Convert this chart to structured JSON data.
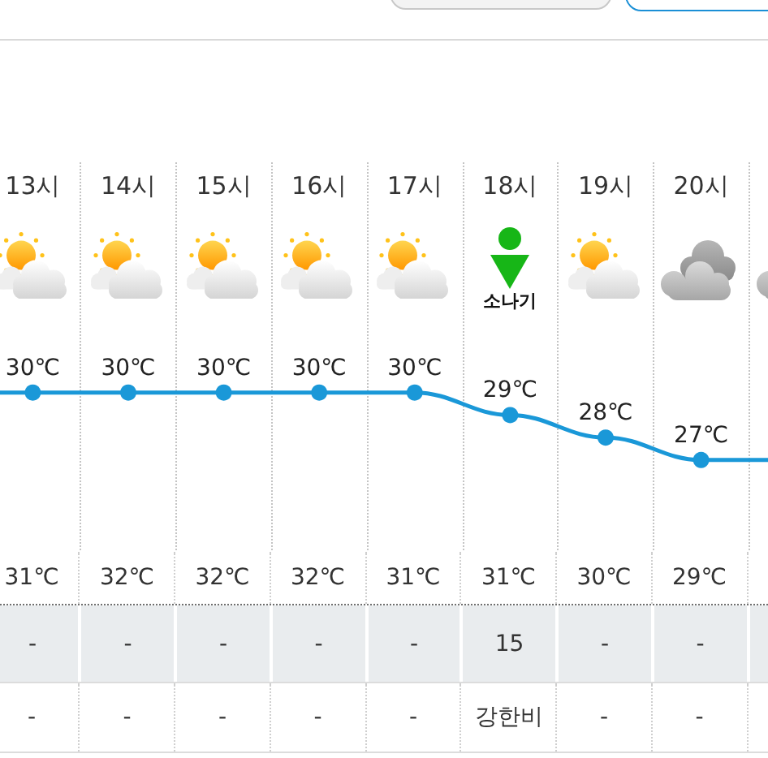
{
  "chart_data": [
    {
      "type": "line",
      "categories": [
        null,
        "13시",
        "14시",
        "15시",
        "16시",
        "17시",
        "18시",
        "19시",
        "20시",
        null
      ],
      "values": [
        30,
        30,
        30,
        30,
        30,
        30,
        29,
        28,
        27,
        27
      ],
      "value_labels": [
        null,
        "30℃",
        "30℃",
        "30℃",
        "30℃",
        "30℃",
        "29℃",
        "28℃",
        "27℃",
        null
      ],
      "color": "#1a98d8",
      "marker": "circle",
      "grid": "x",
      "annotations": [
        "소나기"
      ]
    },
    {
      "type": "other",
      "cell_labels": [
        [
          null,
          "31℃",
          "32℃",
          "32℃",
          "32℃",
          "31℃",
          "31℃",
          "30℃",
          "29℃",
          null
        ],
        [
          null,
          "-",
          "-",
          "-",
          "-",
          "-",
          "15",
          "-",
          "-",
          null
        ],
        [
          null,
          "-",
          "-",
          "-",
          "-",
          "-",
          "강한비",
          "-",
          "-",
          null
        ]
      ]
    }
  ]
}
